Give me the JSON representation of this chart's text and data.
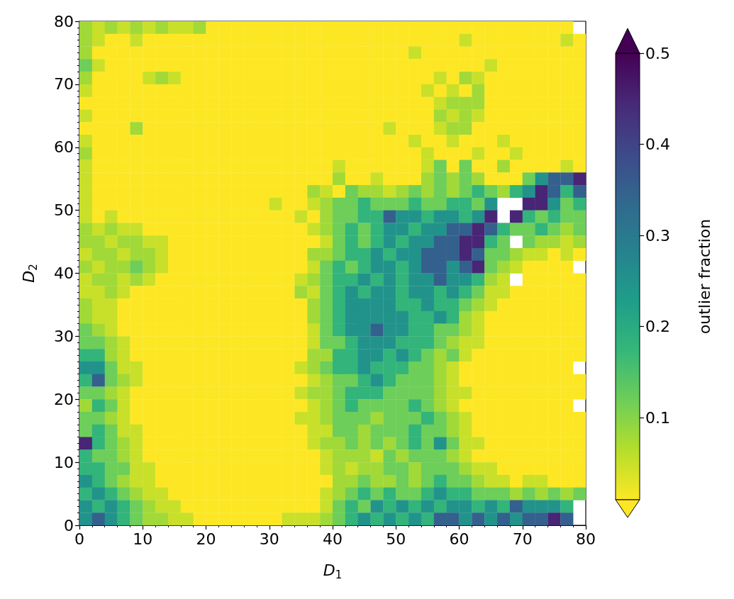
{
  "chart_data": {
    "type": "heatmap",
    "xlabel": "D$_{1}$",
    "ylabel": "D$_{2}$",
    "clabel": "outlier fraction",
    "xlim": [
      0,
      80
    ],
    "ylim": [
      0,
      80
    ],
    "xticks": [
      0,
      10,
      20,
      30,
      40,
      50,
      60,
      70,
      80
    ],
    "yticks": [
      0,
      10,
      20,
      30,
      40,
      50,
      60,
      70,
      80
    ],
    "clim": [
      0.01,
      0.5
    ],
    "cticks": [
      0.1,
      0.2,
      0.3,
      0.4,
      0.5
    ],
    "cells": [
      [
        0.08,
        0.05,
        0.08,
        0.05,
        0.08,
        0.05,
        0.08,
        0.05,
        0.05,
        0.08,
        0.01,
        0.01,
        0.01,
        0.01,
        0.01,
        0.01,
        0.01,
        0.01,
        0.01,
        0.01,
        0.01,
        0.01,
        0.01,
        0.01,
        0.01,
        0.01,
        0.01,
        0.01,
        0.01,
        0.01,
        0.01,
        0.01,
        0.01,
        0.01,
        0.01,
        0.01,
        0.01,
        0.01,
        0.01,
        null
      ],
      [
        0.08,
        0.05,
        0.01,
        0.01,
        0.05,
        0.01,
        0.01,
        0.01,
        0.01,
        0.01,
        0.01,
        0.01,
        0.01,
        0.01,
        0.01,
        0.01,
        0.01,
        0.01,
        0.01,
        0.01,
        0.01,
        0.01,
        0.01,
        0.01,
        0.01,
        0.01,
        0.01,
        0.01,
        0.01,
        0.01,
        0.05,
        0.01,
        0.01,
        0.01,
        0.01,
        0.01,
        0.01,
        0.01,
        0.05,
        0.01
      ],
      [
        0.08,
        0.01,
        0.01,
        0.01,
        0.01,
        0.01,
        0.01,
        0.01,
        0.01,
        0.01,
        0.01,
        0.01,
        0.01,
        0.01,
        0.01,
        0.01,
        0.01,
        0.01,
        0.01,
        0.01,
        0.01,
        0.01,
        0.01,
        0.01,
        0.01,
        0.01,
        0.05,
        0.01,
        0.01,
        0.01,
        0.01,
        0.01,
        0.01,
        0.01,
        0.01,
        0.01,
        0.01,
        0.01,
        0.01,
        0.01
      ],
      [
        0.12,
        0.05,
        0.01,
        0.01,
        0.01,
        0.01,
        0.01,
        0.01,
        0.01,
        0.01,
        0.01,
        0.01,
        0.01,
        0.01,
        0.01,
        0.01,
        0.01,
        0.01,
        0.01,
        0.01,
        0.01,
        0.01,
        0.01,
        0.01,
        0.01,
        0.01,
        0.01,
        0.01,
        0.01,
        0.01,
        0.01,
        0.01,
        0.05,
        0.01,
        0.01,
        0.01,
        0.01,
        0.01,
        0.01,
        0.01
      ],
      [
        0.08,
        0.01,
        0.01,
        0.01,
        0.01,
        0.05,
        0.08,
        0.05,
        0.01,
        0.01,
        0.01,
        0.01,
        0.01,
        0.01,
        0.01,
        0.01,
        0.01,
        0.01,
        0.01,
        0.01,
        0.01,
        0.01,
        0.01,
        0.01,
        0.01,
        0.01,
        0.01,
        0.01,
        0.05,
        0.01,
        0.08,
        0.05,
        0.01,
        0.01,
        0.01,
        0.01,
        0.01,
        0.01,
        0.01,
        0.01
      ],
      [
        0.05,
        0.01,
        0.01,
        0.01,
        0.01,
        0.01,
        0.01,
        0.01,
        0.01,
        0.01,
        0.01,
        0.01,
        0.01,
        0.01,
        0.01,
        0.01,
        0.01,
        0.01,
        0.01,
        0.01,
        0.01,
        0.01,
        0.01,
        0.01,
        0.01,
        0.01,
        0.01,
        0.05,
        0.01,
        0.05,
        0.01,
        0.08,
        0.01,
        0.01,
        0.01,
        0.01,
        0.01,
        0.01,
        0.01,
        0.01
      ],
      [
        0.01,
        0.01,
        0.01,
        0.01,
        0.01,
        0.01,
        0.01,
        0.01,
        0.01,
        0.01,
        0.01,
        0.01,
        0.01,
        0.01,
        0.01,
        0.01,
        0.01,
        0.01,
        0.01,
        0.01,
        0.01,
        0.01,
        0.01,
        0.01,
        0.01,
        0.01,
        0.01,
        0.01,
        0.05,
        0.08,
        0.08,
        0.08,
        0.01,
        0.01,
        0.01,
        0.01,
        0.01,
        0.01,
        0.01,
        0.01
      ],
      [
        0.05,
        0.01,
        0.01,
        0.01,
        0.01,
        0.01,
        0.01,
        0.01,
        0.01,
        0.01,
        0.01,
        0.01,
        0.01,
        0.01,
        0.01,
        0.01,
        0.01,
        0.01,
        0.01,
        0.01,
        0.01,
        0.01,
        0.01,
        0.01,
        0.01,
        0.01,
        0.01,
        0.01,
        0.08,
        0.05,
        0.08,
        0.05,
        0.01,
        0.01,
        0.01,
        0.01,
        0.01,
        0.01,
        0.01,
        0.01
      ],
      [
        0.01,
        0.01,
        0.01,
        0.01,
        0.08,
        0.01,
        0.01,
        0.01,
        0.01,
        0.01,
        0.01,
        0.01,
        0.01,
        0.01,
        0.01,
        0.01,
        0.01,
        0.01,
        0.01,
        0.01,
        0.01,
        0.01,
        0.01,
        0.01,
        0.05,
        0.01,
        0.01,
        0.01,
        0.05,
        0.08,
        0.08,
        0.01,
        0.01,
        0.01,
        0.01,
        0.01,
        0.01,
        0.01,
        0.01,
        0.01
      ],
      [
        0.05,
        0.01,
        0.01,
        0.01,
        0.01,
        0.01,
        0.01,
        0.01,
        0.01,
        0.01,
        0.01,
        0.01,
        0.01,
        0.01,
        0.01,
        0.01,
        0.01,
        0.01,
        0.01,
        0.01,
        0.01,
        0.01,
        0.01,
        0.01,
        0.01,
        0.01,
        0.05,
        0.01,
        0.01,
        0.05,
        0.01,
        0.01,
        0.01,
        0.05,
        0.01,
        0.01,
        0.01,
        0.01,
        0.01,
        0.01
      ],
      [
        0.08,
        0.01,
        0.01,
        0.01,
        0.01,
        0.01,
        0.01,
        0.01,
        0.01,
        0.01,
        0.01,
        0.01,
        0.01,
        0.01,
        0.01,
        0.01,
        0.01,
        0.01,
        0.01,
        0.01,
        0.01,
        0.01,
        0.01,
        0.01,
        0.01,
        0.01,
        0.01,
        0.05,
        0.01,
        0.01,
        0.01,
        0.05,
        0.01,
        0.01,
        0.05,
        0.01,
        0.01,
        0.01,
        0.01,
        0.01
      ],
      [
        0.05,
        0.01,
        0.01,
        0.01,
        0.01,
        0.01,
        0.01,
        0.01,
        0.01,
        0.01,
        0.01,
        0.01,
        0.01,
        0.01,
        0.01,
        0.01,
        0.01,
        0.01,
        0.01,
        0.01,
        0.05,
        0.01,
        0.01,
        0.01,
        0.01,
        0.01,
        0.01,
        0.05,
        0.12,
        0.01,
        0.12,
        0.01,
        0.01,
        0.08,
        0.01,
        0.01,
        0.01,
        0.01,
        0.05,
        0.01
      ],
      [
        0.05,
        0.01,
        0.01,
        0.01,
        0.01,
        0.01,
        0.01,
        0.01,
        0.01,
        0.01,
        0.01,
        0.01,
        0.01,
        0.01,
        0.01,
        0.01,
        0.01,
        0.01,
        0.01,
        0.01,
        0.08,
        0.01,
        0.01,
        0.05,
        0.01,
        0.01,
        0.01,
        0.08,
        0.12,
        0.08,
        0.12,
        0.08,
        0.01,
        0.01,
        0.01,
        0.12,
        0.25,
        0.35,
        0.35,
        0.45
      ],
      [
        0.05,
        0.01,
        0.01,
        0.01,
        0.01,
        0.01,
        0.01,
        0.01,
        0.01,
        0.01,
        0.01,
        0.01,
        0.01,
        0.01,
        0.01,
        0.01,
        0.01,
        0.01,
        0.08,
        0.05,
        0.01,
        0.12,
        0.08,
        0.08,
        0.05,
        0.08,
        0.12,
        0.08,
        0.12,
        0.08,
        0.12,
        0.18,
        0.12,
        0.08,
        0.18,
        0.25,
        0.45,
        0.35,
        0.18,
        0.35
      ],
      [
        0.05,
        0.01,
        0.01,
        0.01,
        0.01,
        0.01,
        0.01,
        0.01,
        0.01,
        0.01,
        0.01,
        0.01,
        0.01,
        0.01,
        0.01,
        0.05,
        0.01,
        0.01,
        0.05,
        0.08,
        0.12,
        0.12,
        0.18,
        0.12,
        0.12,
        0.12,
        0.18,
        0.12,
        0.12,
        0.18,
        0.18,
        0.12,
        0.25,
        null,
        null,
        0.45,
        0.45,
        0.25,
        0.12,
        0.18
      ],
      [
        0.05,
        0.01,
        0.05,
        0.01,
        0.01,
        0.01,
        0.01,
        0.01,
        0.01,
        0.01,
        0.01,
        0.01,
        0.01,
        0.01,
        0.01,
        0.01,
        0.01,
        0.05,
        0.01,
        0.08,
        0.12,
        0.12,
        0.18,
        0.18,
        0.35,
        0.25,
        0.25,
        0.18,
        0.25,
        0.25,
        0.18,
        0.25,
        0.45,
        null,
        0.45,
        0.18,
        0.12,
        0.18,
        0.12,
        0.12
      ],
      [
        0.08,
        0.05,
        0.08,
        0.05,
        0.05,
        0.01,
        0.01,
        0.01,
        0.01,
        0.01,
        0.01,
        0.01,
        0.01,
        0.01,
        0.01,
        0.01,
        0.01,
        0.01,
        0.05,
        0.08,
        0.12,
        0.18,
        0.12,
        0.18,
        0.25,
        0.25,
        0.18,
        0.25,
        0.25,
        0.35,
        0.35,
        0.45,
        0.35,
        0.18,
        0.12,
        0.12,
        0.18,
        0.12,
        0.08,
        0.12
      ],
      [
        0.08,
        0.08,
        0.05,
        0.08,
        0.08,
        0.05,
        0.05,
        0.01,
        0.01,
        0.01,
        0.01,
        0.01,
        0.01,
        0.01,
        0.01,
        0.01,
        0.01,
        0.01,
        0.01,
        0.05,
        0.12,
        0.18,
        0.12,
        0.18,
        0.25,
        0.18,
        0.25,
        0.25,
        0.35,
        0.35,
        0.45,
        0.45,
        0.18,
        0.12,
        null,
        0.12,
        0.08,
        0.08,
        0.05,
        0.08
      ],
      [
        0.05,
        0.08,
        0.08,
        0.05,
        0.08,
        0.08,
        0.05,
        0.01,
        0.01,
        0.01,
        0.01,
        0.01,
        0.01,
        0.01,
        0.01,
        0.01,
        0.01,
        0.01,
        0.08,
        0.08,
        0.12,
        0.18,
        0.18,
        0.25,
        0.18,
        0.25,
        0.25,
        0.35,
        0.35,
        0.35,
        0.45,
        0.35,
        0.12,
        0.12,
        0.08,
        0.05,
        0.05,
        0.01,
        0.05,
        0.01
      ],
      [
        0.08,
        0.05,
        0.08,
        0.08,
        0.12,
        0.08,
        0.05,
        0.01,
        0.01,
        0.01,
        0.01,
        0.01,
        0.01,
        0.01,
        0.01,
        0.01,
        0.01,
        0.01,
        0.05,
        0.12,
        0.18,
        0.12,
        0.18,
        0.25,
        0.25,
        0.18,
        0.25,
        0.35,
        0.35,
        0.25,
        0.35,
        0.45,
        0.12,
        0.08,
        0.05,
        0.01,
        0.01,
        0.01,
        0.01,
        null
      ],
      [
        0.05,
        0.08,
        0.08,
        0.05,
        0.08,
        0.05,
        0.01,
        0.01,
        0.01,
        0.01,
        0.01,
        0.01,
        0.01,
        0.01,
        0.01,
        0.01,
        0.01,
        0.05,
        0.08,
        0.12,
        0.18,
        0.18,
        0.25,
        0.18,
        0.25,
        0.18,
        0.25,
        0.25,
        0.35,
        0.25,
        0.25,
        0.18,
        0.08,
        0.05,
        null,
        0.01,
        0.01,
        0.01,
        0.01,
        0.01
      ],
      [
        0.05,
        0.05,
        0.08,
        0.05,
        0.01,
        0.01,
        0.01,
        0.01,
        0.01,
        0.01,
        0.01,
        0.01,
        0.01,
        0.01,
        0.01,
        0.01,
        0.01,
        0.08,
        0.05,
        0.12,
        0.18,
        0.25,
        0.18,
        0.25,
        0.25,
        0.18,
        0.25,
        0.25,
        0.18,
        0.25,
        0.18,
        0.12,
        0.05,
        0.05,
        0.01,
        0.01,
        0.01,
        0.01,
        0.01,
        0.01
      ],
      [
        0.08,
        0.05,
        0.05,
        0.01,
        0.01,
        0.01,
        0.01,
        0.01,
        0.01,
        0.01,
        0.01,
        0.01,
        0.01,
        0.01,
        0.01,
        0.01,
        0.01,
        0.01,
        0.08,
        0.12,
        0.18,
        0.25,
        0.25,
        0.25,
        0.25,
        0.18,
        0.18,
        0.25,
        0.18,
        0.18,
        0.12,
        0.08,
        0.05,
        0.01,
        0.01,
        0.01,
        0.01,
        0.01,
        0.01,
        0.01
      ],
      [
        0.08,
        0.05,
        0.05,
        0.01,
        0.01,
        0.01,
        0.01,
        0.01,
        0.01,
        0.01,
        0.01,
        0.01,
        0.01,
        0.01,
        0.01,
        0.01,
        0.01,
        0.01,
        0.08,
        0.12,
        0.18,
        0.25,
        0.25,
        0.25,
        0.25,
        0.25,
        0.18,
        0.18,
        0.25,
        0.18,
        0.08,
        0.05,
        0.01,
        0.01,
        0.01,
        0.01,
        0.01,
        0.01,
        0.01,
        0.01
      ],
      [
        0.12,
        0.08,
        0.05,
        0.01,
        0.01,
        0.01,
        0.01,
        0.01,
        0.01,
        0.01,
        0.01,
        0.01,
        0.01,
        0.01,
        0.01,
        0.01,
        0.01,
        0.01,
        0.05,
        0.12,
        0.18,
        0.25,
        0.25,
        0.35,
        0.25,
        0.25,
        0.18,
        0.18,
        0.12,
        0.12,
        0.08,
        0.05,
        0.01,
        0.01,
        0.01,
        0.01,
        0.01,
        0.01,
        0.01,
        0.01
      ],
      [
        0.12,
        0.12,
        0.08,
        0.05,
        0.01,
        0.01,
        0.01,
        0.01,
        0.01,
        0.01,
        0.01,
        0.01,
        0.01,
        0.01,
        0.01,
        0.01,
        0.01,
        0.01,
        0.05,
        0.12,
        0.12,
        0.18,
        0.25,
        0.25,
        0.25,
        0.18,
        0.18,
        0.18,
        0.12,
        0.08,
        0.05,
        0.05,
        0.01,
        0.01,
        0.01,
        0.01,
        0.01,
        0.01,
        0.01,
        0.01
      ],
      [
        0.18,
        0.18,
        0.08,
        0.05,
        0.01,
        0.01,
        0.01,
        0.01,
        0.01,
        0.01,
        0.01,
        0.01,
        0.01,
        0.01,
        0.01,
        0.01,
        0.01,
        0.01,
        0.08,
        0.08,
        0.18,
        0.18,
        0.25,
        0.25,
        0.18,
        0.25,
        0.18,
        0.12,
        0.08,
        0.12,
        0.05,
        0.01,
        0.01,
        0.01,
        0.01,
        0.01,
        0.01,
        0.01,
        0.01,
        0.01
      ],
      [
        0.25,
        0.25,
        0.12,
        0.05,
        0.05,
        0.01,
        0.01,
        0.01,
        0.01,
        0.01,
        0.01,
        0.01,
        0.01,
        0.01,
        0.01,
        0.01,
        0.01,
        0.05,
        0.08,
        0.12,
        0.18,
        0.18,
        0.25,
        0.18,
        0.18,
        0.18,
        0.12,
        0.12,
        0.08,
        0.05,
        0.01,
        0.01,
        0.01,
        0.01,
        0.01,
        0.01,
        0.01,
        0.01,
        0.01,
        null
      ],
      [
        0.18,
        0.35,
        0.12,
        0.08,
        0.05,
        0.01,
        0.01,
        0.01,
        0.01,
        0.01,
        0.01,
        0.01,
        0.01,
        0.01,
        0.01,
        0.01,
        0.01,
        0.01,
        0.05,
        0.08,
        0.12,
        0.12,
        0.18,
        0.25,
        0.18,
        0.12,
        0.12,
        0.12,
        0.08,
        0.05,
        0.01,
        0.01,
        0.01,
        0.01,
        0.01,
        0.01,
        0.01,
        0.01,
        0.01,
        0.01
      ],
      [
        0.12,
        0.12,
        0.08,
        0.05,
        0.01,
        0.01,
        0.01,
        0.01,
        0.01,
        0.01,
        0.01,
        0.01,
        0.01,
        0.01,
        0.01,
        0.01,
        0.01,
        0.05,
        0.08,
        0.08,
        0.12,
        0.18,
        0.18,
        0.18,
        0.12,
        0.12,
        0.12,
        0.12,
        0.08,
        0.05,
        0.05,
        0.01,
        0.01,
        0.01,
        0.01,
        0.01,
        0.01,
        0.01,
        0.01,
        0.01
      ],
      [
        0.08,
        0.18,
        0.12,
        0.05,
        0.01,
        0.01,
        0.01,
        0.01,
        0.01,
        0.01,
        0.01,
        0.01,
        0.01,
        0.01,
        0.01,
        0.01,
        0.01,
        0.01,
        0.05,
        0.08,
        0.12,
        0.18,
        0.12,
        0.12,
        0.12,
        0.12,
        0.18,
        0.12,
        0.08,
        0.05,
        0.01,
        0.01,
        0.01,
        0.01,
        0.01,
        0.01,
        0.01,
        0.01,
        0.01,
        null
      ],
      [
        0.12,
        0.12,
        0.08,
        0.05,
        0.01,
        0.01,
        0.01,
        0.01,
        0.01,
        0.01,
        0.01,
        0.01,
        0.01,
        0.01,
        0.01,
        0.01,
        0.01,
        0.05,
        0.05,
        0.08,
        0.12,
        0.12,
        0.12,
        0.08,
        0.12,
        0.12,
        0.12,
        0.18,
        0.12,
        0.08,
        0.05,
        0.01,
        0.01,
        0.01,
        0.01,
        0.01,
        0.01,
        0.01,
        0.01,
        0.01
      ],
      [
        0.12,
        0.18,
        0.12,
        0.05,
        0.05,
        0.01,
        0.01,
        0.01,
        0.01,
        0.01,
        0.01,
        0.01,
        0.01,
        0.01,
        0.01,
        0.01,
        0.01,
        0.01,
        0.05,
        0.05,
        0.12,
        0.12,
        0.08,
        0.12,
        0.12,
        0.12,
        0.18,
        0.12,
        0.12,
        0.08,
        0.05,
        0.01,
        0.01,
        0.01,
        0.01,
        0.01,
        0.01,
        0.01,
        0.01,
        0.01
      ],
      [
        0.45,
        0.18,
        0.12,
        0.08,
        0.05,
        0.01,
        0.01,
        0.01,
        0.01,
        0.01,
        0.01,
        0.01,
        0.01,
        0.01,
        0.01,
        0.01,
        0.01,
        0.01,
        0.05,
        0.08,
        0.08,
        0.12,
        0.08,
        0.12,
        0.08,
        0.12,
        0.18,
        0.12,
        0.25,
        0.12,
        0.05,
        0.05,
        0.01,
        0.01,
        0.01,
        0.01,
        0.01,
        0.01,
        0.01,
        0.01
      ],
      [
        0.18,
        0.12,
        0.12,
        0.08,
        0.05,
        0.01,
        0.01,
        0.01,
        0.01,
        0.01,
        0.01,
        0.01,
        0.01,
        0.01,
        0.01,
        0.01,
        0.01,
        0.01,
        0.01,
        0.05,
        0.08,
        0.08,
        0.08,
        0.05,
        0.12,
        0.08,
        0.12,
        0.12,
        0.12,
        0.08,
        0.05,
        0.01,
        0.01,
        0.01,
        0.01,
        0.01,
        0.01,
        0.01,
        0.01,
        0.01
      ],
      [
        0.18,
        0.18,
        0.12,
        0.12,
        0.05,
        0.05,
        0.01,
        0.01,
        0.01,
        0.01,
        0.01,
        0.01,
        0.01,
        0.01,
        0.01,
        0.01,
        0.01,
        0.01,
        0.01,
        0.05,
        0.08,
        0.05,
        0.08,
        0.08,
        0.12,
        0.12,
        0.08,
        0.12,
        0.12,
        0.12,
        0.08,
        0.05,
        0.05,
        0.01,
        0.01,
        0.01,
        0.01,
        0.01,
        0.01,
        0.01
      ],
      [
        0.25,
        0.18,
        0.12,
        0.08,
        0.05,
        0.05,
        0.01,
        0.01,
        0.01,
        0.01,
        0.01,
        0.01,
        0.01,
        0.01,
        0.01,
        0.01,
        0.01,
        0.01,
        0.01,
        0.01,
        0.08,
        0.08,
        0.12,
        0.08,
        0.08,
        0.12,
        0.08,
        0.12,
        0.18,
        0.12,
        0.12,
        0.08,
        0.05,
        0.05,
        0.01,
        0.05,
        0.05,
        0.01,
        0.01,
        0.01
      ],
      [
        0.18,
        0.25,
        0.18,
        0.12,
        0.08,
        0.05,
        0.05,
        0.01,
        0.01,
        0.01,
        0.01,
        0.01,
        0.01,
        0.01,
        0.01,
        0.01,
        0.01,
        0.01,
        0.01,
        0.05,
        0.08,
        0.12,
        0.18,
        0.12,
        0.18,
        0.12,
        0.12,
        0.18,
        0.25,
        0.18,
        0.18,
        0.12,
        0.12,
        0.12,
        0.08,
        0.12,
        0.08,
        0.12,
        0.08,
        0.12
      ],
      [
        0.25,
        0.18,
        0.25,
        0.18,
        0.12,
        0.08,
        0.05,
        0.05,
        0.01,
        0.01,
        0.01,
        0.01,
        0.01,
        0.01,
        0.01,
        0.01,
        0.01,
        0.01,
        0.01,
        0.05,
        0.12,
        0.18,
        0.12,
        0.25,
        0.18,
        0.25,
        0.18,
        0.25,
        0.18,
        0.25,
        0.25,
        0.18,
        0.25,
        0.18,
        0.35,
        0.25,
        0.25,
        0.25,
        0.18,
        null
      ],
      [
        0.25,
        0.35,
        0.25,
        0.18,
        0.12,
        0.08,
        0.08,
        0.05,
        0.05,
        0.01,
        0.01,
        0.01,
        0.01,
        0.01,
        0.01,
        0.01,
        0.05,
        0.05,
        0.05,
        0.08,
        0.12,
        0.18,
        0.25,
        0.18,
        0.25,
        0.18,
        0.25,
        0.18,
        0.35,
        0.35,
        0.25,
        0.35,
        0.25,
        0.35,
        0.25,
        0.35,
        0.35,
        0.45,
        0.35,
        null
      ]
    ]
  }
}
